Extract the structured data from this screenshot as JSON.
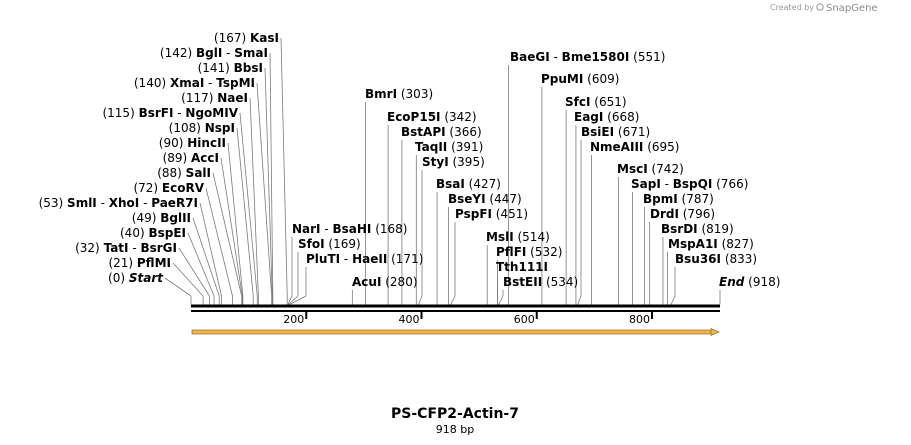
{
  "header": {
    "created_by": "Created by",
    "brand": "SnapGene"
  },
  "plasmid": {
    "name": "PS-CFP2-Actin-7",
    "length_label": "918 bp",
    "length": 918
  },
  "colors": {
    "feature_fill": "#f5b24a",
    "feature_stroke": "#7a5a18",
    "line": "#000000",
    "leader": "#7a7a7a"
  },
  "axis": {
    "ticks": [
      200,
      400,
      600,
      800
    ]
  },
  "left_labels": [
    {
      "num": "(167)",
      "names": [
        "KasI"
      ],
      "bp": 167
    },
    {
      "num": "(142)",
      "names": [
        "BglI",
        "SmaI"
      ],
      "bp": 142
    },
    {
      "num": "(141)",
      "names": [
        "BbsI"
      ],
      "bp": 141
    },
    {
      "num": "(140)",
      "names": [
        "XmaI",
        "TspMI"
      ],
      "bp": 140
    },
    {
      "num": "(117)",
      "names": [
        "NaeI"
      ],
      "bp": 117
    },
    {
      "num": "(115)",
      "names": [
        "BsrFI",
        "NgoMIV"
      ],
      "bp": 115
    },
    {
      "num": "(108)",
      "names": [
        "NspI"
      ],
      "bp": 108
    },
    {
      "num": "(90)",
      "names": [
        "HincII"
      ],
      "bp": 90
    },
    {
      "num": "(89)",
      "names": [
        "AccI"
      ],
      "bp": 89
    },
    {
      "num": "(88)",
      "names": [
        "SalI"
      ],
      "bp": 88
    },
    {
      "num": "(72)",
      "names": [
        "EcoRV"
      ],
      "bp": 72
    },
    {
      "num": "(53)",
      "names": [
        "SmlI",
        "XhoI",
        "PaeR7I"
      ],
      "bp": 53
    },
    {
      "num": "(49)",
      "names": [
        "BglII"
      ],
      "bp": 49
    },
    {
      "num": "(40)",
      "names": [
        "BspEI"
      ],
      "bp": 40
    },
    {
      "num": "(32)",
      "names": [
        "TatI",
        "BsrGI"
      ],
      "bp": 32
    },
    {
      "num": "(21)",
      "names": [
        "PflMI"
      ],
      "bp": 21
    },
    {
      "num": "(0)",
      "names": [
        "Start"
      ],
      "bp": 0,
      "italic": true
    }
  ],
  "right_labels": [
    {
      "names": [
        "BaeGI",
        "Bme1580I"
      ],
      "num": "(551)",
      "bp": 551
    },
    {
      "names": [
        "PpuMI"
      ],
      "num": "(609)",
      "bp": 609
    },
    {
      "names": [
        "BmrI"
      ],
      "num": "(303)",
      "bp": 303
    },
    {
      "names": [
        "SfcI"
      ],
      "num": "(651)",
      "bp": 651
    },
    {
      "names": [
        "EcoP15I"
      ],
      "num": "(342)",
      "bp": 342
    },
    {
      "names": [
        "EagI"
      ],
      "num": "(668)",
      "bp": 668
    },
    {
      "names": [
        "BstAPI"
      ],
      "num": "(366)",
      "bp": 366
    },
    {
      "names": [
        "BsiEI"
      ],
      "num": "(671)",
      "bp": 671
    },
    {
      "names": [
        "TaqII"
      ],
      "num": "(391)",
      "bp": 391
    },
    {
      "names": [
        "NmeAIII"
      ],
      "num": "(695)",
      "bp": 695
    },
    {
      "names": [
        "StyI"
      ],
      "num": "(395)",
      "bp": 395
    },
    {
      "names": [
        "MscI"
      ],
      "num": "(742)",
      "bp": 742
    },
    {
      "names": [
        "BsaI"
      ],
      "num": "(427)",
      "bp": 427
    },
    {
      "names": [
        "SapI",
        "BspQI"
      ],
      "num": "(766)",
      "bp": 766
    },
    {
      "names": [
        "BseYI"
      ],
      "num": "(447)",
      "bp": 447
    },
    {
      "names": [
        "BpmI"
      ],
      "num": "(787)",
      "bp": 787
    },
    {
      "names": [
        "PspFI"
      ],
      "num": "(451)",
      "bp": 451
    },
    {
      "names": [
        "DrdI"
      ],
      "num": "(796)",
      "bp": 796
    },
    {
      "names": [
        "NarI",
        "BsaHI"
      ],
      "num": "(168)",
      "bp": 168
    },
    {
      "names": [
        "SfoI"
      ],
      "num": "(169)",
      "bp": 169
    },
    {
      "names": [
        "BsrDI"
      ],
      "num": "(819)",
      "bp": 819
    },
    {
      "names": [
        "MslI"
      ],
      "num": "(514)",
      "bp": 514
    },
    {
      "names": [
        "MspA1I"
      ],
      "num": "(827)",
      "bp": 827
    },
    {
      "names": [
        "PluTI",
        "HaeII"
      ],
      "num": "(171)",
      "bp": 171
    },
    {
      "names": [
        "PflFI"
      ],
      "num": "(532)",
      "bp": 532
    },
    {
      "names": [
        "Bsu36I"
      ],
      "num": "(833)",
      "bp": 833
    },
    {
      "names": [
        "Tth111I"
      ],
      "num": "",
      "bp": 532
    },
    {
      "names": [
        "AcuI"
      ],
      "num": "(280)",
      "bp": 280
    },
    {
      "names": [
        "BstEII"
      ],
      "num": "(534)",
      "bp": 534
    },
    {
      "names": [
        "End"
      ],
      "num": "(918)",
      "bp": 918,
      "italic": true
    }
  ]
}
